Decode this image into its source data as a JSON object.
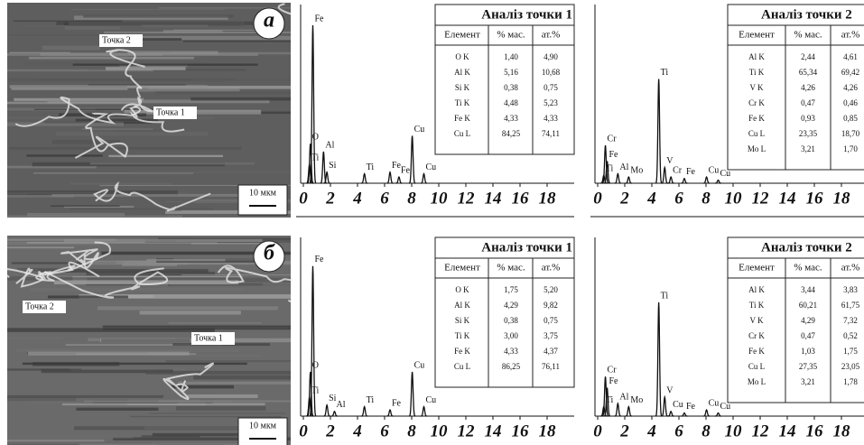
{
  "panels": [
    {
      "label": "а",
      "image": {
        "labels": [
          "Точка 2",
          "Точка 1"
        ],
        "scale": "10 мкм"
      },
      "spectra": [
        {
          "xlim": [
            0,
            20
          ],
          "ylim": [
            0,
            100
          ],
          "xticks": [
            0,
            2,
            4,
            6,
            8,
            10,
            12,
            14,
            16,
            18
          ],
          "peaks": [
            {
              "label": "O",
              "energy": 0.52,
              "height": 25
            },
            {
              "label": "Ti",
              "energy": 0.45,
              "height": 12
            },
            {
              "label": "Fe",
              "energy": 0.7,
              "height": 100
            },
            {
              "label": "Al",
              "energy": 1.49,
              "height": 20
            },
            {
              "label": "Si",
              "energy": 1.74,
              "height": 7
            },
            {
              "label": "Ti",
              "energy": 4.51,
              "height": 6
            },
            {
              "label": "Fe",
              "energy": 6.4,
              "height": 7
            },
            {
              "label": "Fe",
              "energy": 7.06,
              "height": 4
            },
            {
              "label": "Cu",
              "energy": 8.04,
              "height": 30
            },
            {
              "label": "Cu",
              "energy": 8.9,
              "height": 6
            }
          ],
          "table": {
            "title": "Аналіз точки 1",
            "header": [
              "Елемент",
              "% мас.",
              "ат.%"
            ],
            "rows": [
              [
                "O K",
                "1,40",
                "4,90"
              ],
              [
                "Al K",
                "5,16",
                "10,68"
              ],
              [
                "Si K",
                "0,38",
                "0,75"
              ],
              [
                "Ti K",
                "4,48",
                "5,23"
              ],
              [
                "Fe K",
                "4,33",
                "4,33"
              ],
              [
                "Cu L",
                "84,25",
                "74,11"
              ]
            ]
          }
        },
        {
          "xlim": [
            0,
            20
          ],
          "ylim": [
            0,
            100
          ],
          "xticks": [
            0,
            2,
            4,
            6,
            8,
            10,
            12,
            14,
            16,
            18
          ],
          "peaks": [
            {
              "label": "Cr",
              "energy": 0.57,
              "height": 24
            },
            {
              "label": "Fe",
              "energy": 0.7,
              "height": 14
            },
            {
              "label": "Ti",
              "energy": 0.45,
              "height": 5
            },
            {
              "label": "Al",
              "energy": 1.49,
              "height": 6
            },
            {
              "label": "Mo",
              "energy": 2.29,
              "height": 4
            },
            {
              "label": "Ti",
              "energy": 4.51,
              "height": 66
            },
            {
              "label": "V",
              "energy": 4.95,
              "height": 10
            },
            {
              "label": "Cr",
              "energy": 5.41,
              "height": 4
            },
            {
              "label": "Fe",
              "energy": 6.4,
              "height": 3
            },
            {
              "label": "Cu",
              "energy": 8.04,
              "height": 4
            },
            {
              "label": "Cu",
              "energy": 8.9,
              "height": 2
            }
          ],
          "table": {
            "title": "Аналіз точки 2",
            "header": [
              "Елемент",
              "% мас.",
              "ат.%"
            ],
            "rows": [
              [
                "Al K",
                "2,44",
                "4,61"
              ],
              [
                "Ti K",
                "65,34",
                "69,42"
              ],
              [
                "V K",
                "4,26",
                "4,26"
              ],
              [
                "Cr K",
                "0,47",
                "0,46"
              ],
              [
                "Fe K",
                "0,93",
                "0,85"
              ],
              [
                "Cu L",
                "23,35",
                "18,70"
              ],
              [
                "Mo L",
                "3,21",
                "1,70"
              ]
            ]
          }
        }
      ]
    },
    {
      "label": "б",
      "image": {
        "labels": [
          "Точка 2",
          "Точка 1"
        ],
        "scale": "10 мкм"
      },
      "spectra": [
        {
          "xlim": [
            0,
            20
          ],
          "ylim": [
            0,
            100
          ],
          "xticks": [
            0,
            2,
            4,
            6,
            8,
            10,
            12,
            14,
            16,
            18
          ],
          "peaks": [
            {
              "label": "O",
              "energy": 0.52,
              "height": 28
            },
            {
              "label": "Ti",
              "energy": 0.45,
              "height": 12
            },
            {
              "label": "Fe",
              "energy": 0.7,
              "height": 95
            },
            {
              "label": "Si",
              "energy": 1.74,
              "height": 7
            },
            {
              "label": "Al",
              "energy": 2.3,
              "height": 3
            },
            {
              "label": "Ti",
              "energy": 4.51,
              "height": 6
            },
            {
              "label": "Fe",
              "energy": 6.4,
              "height": 4
            },
            {
              "label": "Cu",
              "energy": 8.04,
              "height": 28
            },
            {
              "label": "Cu",
              "energy": 8.9,
              "height": 6
            }
          ],
          "table": {
            "title": "Аналіз точки 1",
            "header": [
              "Елемент",
              "% мас.",
              "ат.%"
            ],
            "rows": [
              [
                "O K",
                "1,75",
                "5,20"
              ],
              [
                "Al K",
                "4,29",
                "9,82"
              ],
              [
                "Si K",
                "0,38",
                "0,75"
              ],
              [
                "Ti K",
                "3,00",
                "3,75"
              ],
              [
                "Fe K",
                "4,33",
                "4,37"
              ],
              [
                "Cu L",
                "86,25",
                "76,11"
              ]
            ]
          }
        },
        {
          "xlim": [
            0,
            20
          ],
          "ylim": [
            0,
            100
          ],
          "xticks": [
            0,
            2,
            4,
            6,
            8,
            10,
            12,
            14,
            16,
            18
          ],
          "peaks": [
            {
              "label": "Cr",
              "energy": 0.57,
              "height": 25
            },
            {
              "label": "Fe",
              "energy": 0.7,
              "height": 18
            },
            {
              "label": "Ti",
              "energy": 0.45,
              "height": 6
            },
            {
              "label": "Al",
              "energy": 1.49,
              "height": 8
            },
            {
              "label": "Mo",
              "energy": 2.29,
              "height": 6
            },
            {
              "label": "Ti",
              "energy": 4.51,
              "height": 72
            },
            {
              "label": "V",
              "energy": 4.95,
              "height": 12
            },
            {
              "label": "Cu",
              "energy": 5.41,
              "height": 3
            },
            {
              "label": "Fe",
              "energy": 6.4,
              "height": 2
            },
            {
              "label": "Cu",
              "energy": 8.04,
              "height": 4
            },
            {
              "label": "Cu",
              "energy": 8.9,
              "height": 2
            }
          ],
          "table": {
            "title": "Аналіз точки 2",
            "header": [
              "Елемент",
              "% мас.",
              "ат.%"
            ],
            "rows": [
              [
                "Al K",
                "3,44",
                "3,83"
              ],
              [
                "Ti K",
                "60,21",
                "61,75"
              ],
              [
                "V K",
                "4,29",
                "7,32"
              ],
              [
                "Cr K",
                "0,47",
                "0,52"
              ],
              [
                "Fe K",
                "1,03",
                "1,75"
              ],
              [
                "Cu L",
                "27,35",
                "23,05"
              ],
              [
                "Mo L",
                "3,21",
                "1,78"
              ]
            ]
          }
        }
      ]
    }
  ]
}
